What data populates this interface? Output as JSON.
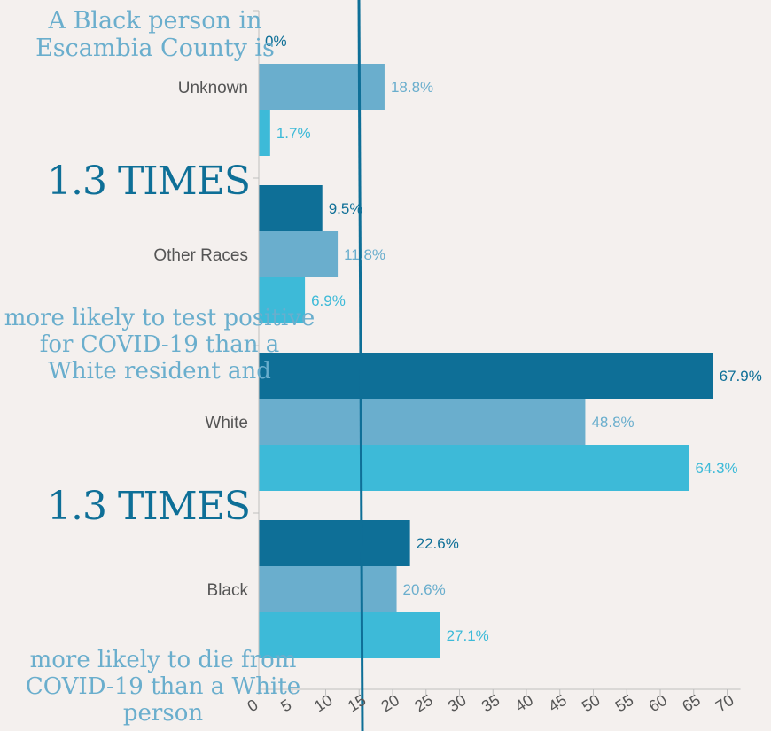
{
  "annotations": {
    "intro": [
      "A Black person in",
      "Escambia County is"
    ],
    "times_1": "1.3 TIMES",
    "mid": [
      "more likely to test positive",
      "for COVID-19 than a",
      "White resident and"
    ],
    "times_2": "1.3 TIMES",
    "outro": [
      "more likely to die from",
      "COVID-19 than a White",
      "person"
    ]
  },
  "colors": {
    "background": "#f4f0ee",
    "series_dark": "#0e6f97",
    "series_mid": "#6aaecd",
    "series_light": "#3dbad8",
    "axis": "#bfbfbf",
    "category_label": "#555555",
    "marker_line": "#0e6f97"
  },
  "chart_data": {
    "type": "bar",
    "orientation": "horizontal",
    "categories": [
      "Unknown",
      "Other Races",
      "White",
      "Black"
    ],
    "series": [
      {
        "values": [
          0,
          9.5,
          67.9,
          22.6
        ]
      },
      {
        "values": [
          18.8,
          11.8,
          48.8,
          20.6
        ]
      },
      {
        "values": [
          1.7,
          6.9,
          64.3,
          27.1
        ]
      }
    ],
    "value_labels": [
      [
        "0%",
        "9.5%",
        "67.9%",
        "22.6%"
      ],
      [
        "18.8%",
        "11.8%",
        "48.8%",
        "20.6%"
      ],
      [
        "1.7%",
        "6.9%",
        "64.3%",
        "27.1%"
      ]
    ],
    "x_ticks": [
      0,
      5,
      10,
      15,
      20,
      25,
      30,
      35,
      40,
      45,
      50,
      55,
      60,
      65,
      70
    ],
    "xlim": [
      0,
      72
    ],
    "title": "",
    "xlabel": "",
    "ylabel": "",
    "grid": false,
    "legend": "none"
  }
}
